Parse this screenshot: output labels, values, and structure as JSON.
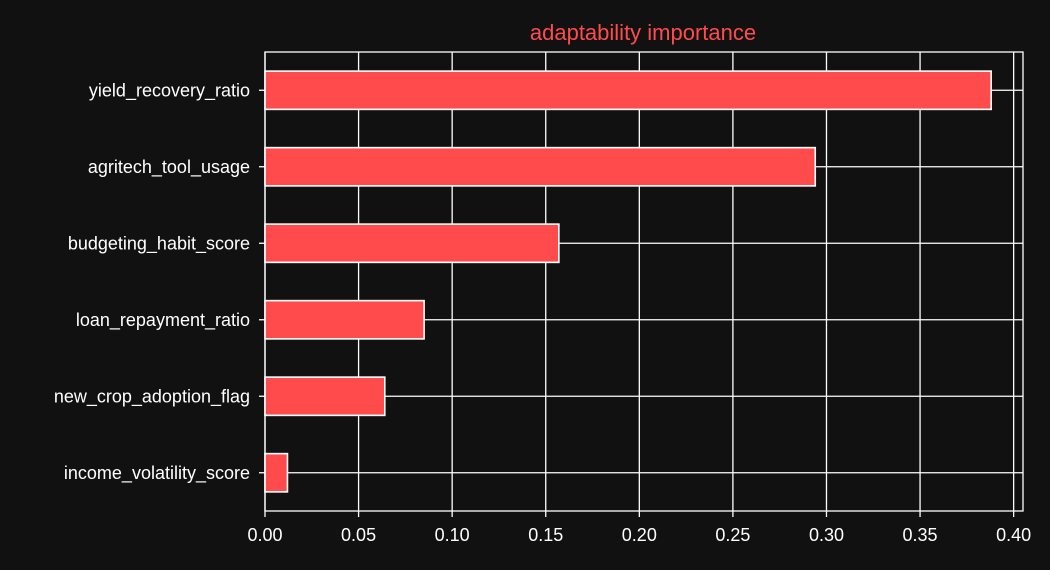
{
  "chart_data": {
    "type": "bar",
    "orientation": "horizontal",
    "title": "adaptability importance",
    "xlabel": "",
    "ylabel": "",
    "categories": [
      "income_volatility_score",
      "new_crop_adoption_flag",
      "loan_repayment_ratio",
      "budgeting_habit_score",
      "agritech_tool_usage",
      "yield_recovery_ratio"
    ],
    "values": [
      0.012,
      0.064,
      0.085,
      0.157,
      0.294,
      0.388
    ],
    "xlim": [
      0.0,
      0.405
    ],
    "xticks": [
      "0.00",
      "0.05",
      "0.10",
      "0.15",
      "0.20",
      "0.25",
      "0.30",
      "0.35",
      "0.40"
    ],
    "grid": true,
    "legend": "none"
  },
  "colors": {
    "background": "#111111",
    "bar_fill": "#ff4b4b",
    "bar_edge": "#ffffff",
    "grid": "#ffffff",
    "axis": "#ffffff",
    "text": "#ffffff",
    "title": "#ff4b4b"
  }
}
